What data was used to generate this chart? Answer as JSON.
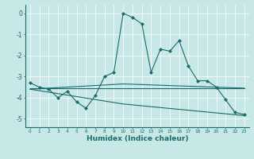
{
  "xlabel": "Humidex (Indice chaleur)",
  "ylabel": "",
  "background_color": "#c8e8e8",
  "line_color": "#1a6b6b",
  "grid_color": "#ffffff",
  "xlim": [
    -0.5,
    23.5
  ],
  "ylim": [
    -5.4,
    0.4
  ],
  "yticks": [
    0,
    -1,
    -2,
    -3,
    -4,
    -5
  ],
  "xticks": [
    0,
    1,
    2,
    3,
    4,
    5,
    6,
    7,
    8,
    9,
    10,
    11,
    12,
    13,
    14,
    15,
    16,
    17,
    18,
    19,
    20,
    21,
    22,
    23
  ],
  "series": [
    {
      "x": [
        0,
        1,
        2,
        3,
        4,
        5,
        6,
        7,
        8,
        9,
        10,
        11,
        12,
        13,
        14,
        15,
        16,
        17,
        18,
        19,
        20,
        21,
        22,
        23
      ],
      "y": [
        -3.3,
        -3.5,
        -3.6,
        -4.0,
        -3.7,
        -4.2,
        -4.5,
        -3.9,
        -3.0,
        -2.8,
        0.0,
        -0.2,
        -0.5,
        -2.8,
        -1.7,
        -1.8,
        -1.3,
        -2.5,
        -3.2,
        -3.2,
        -3.5,
        -4.1,
        -4.7,
        -4.8
      ],
      "has_markers": true
    },
    {
      "x": [
        0,
        23
      ],
      "y": [
        -3.55,
        -3.55
      ],
      "has_markers": false
    },
    {
      "x": [
        0,
        10,
        23
      ],
      "y": [
        -3.6,
        -3.35,
        -3.55
      ],
      "has_markers": false
    },
    {
      "x": [
        0,
        10,
        23
      ],
      "y": [
        -3.6,
        -4.3,
        -4.85
      ],
      "has_markers": false
    }
  ]
}
